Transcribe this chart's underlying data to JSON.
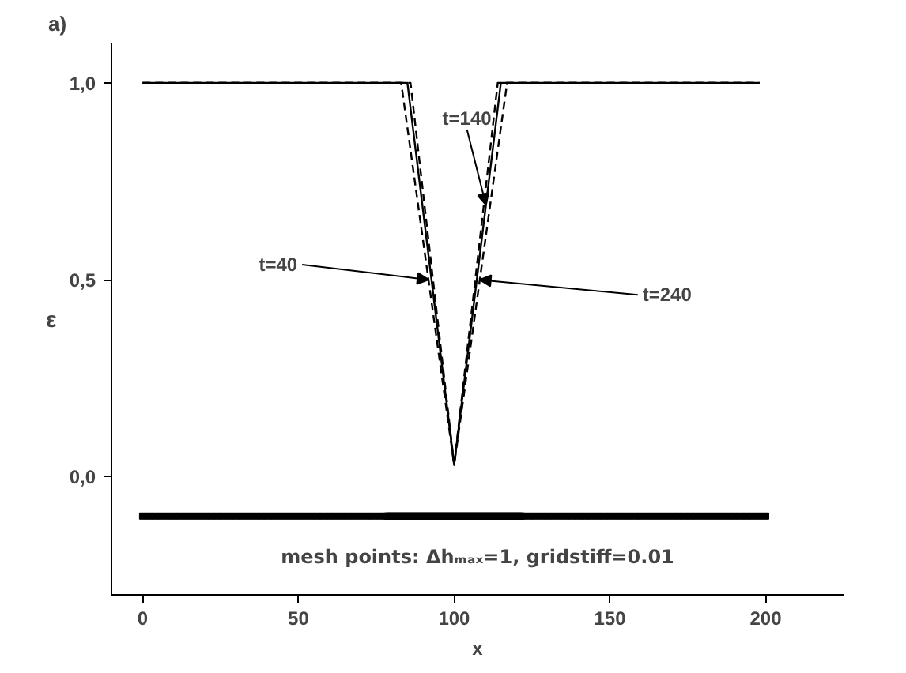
{
  "chart_data": {
    "type": "line",
    "title": "a)",
    "xlabel": "x",
    "ylabel": "ε",
    "xlim": [
      -10,
      225
    ],
    "ylim": [
      -0.3,
      1.1
    ],
    "xticks": [
      0,
      50,
      100,
      150,
      200
    ],
    "yticks": [
      {
        "value": 0,
        "label": "0,0"
      },
      {
        "value": 0.5,
        "label": "0,5"
      },
      {
        "value": 1,
        "label": "1,0"
      }
    ],
    "grid": false,
    "series": [
      {
        "color": "#000000",
        "line_style": "solid",
        "x": [
          0,
          85,
          100,
          115,
          198
        ],
        "values": [
          1,
          1,
          0.03,
          1,
          1
        ]
      },
      {
        "color": "#000000",
        "line_style": "dashed",
        "x": [
          0,
          83,
          100,
          114,
          198
        ],
        "values": [
          1,
          1,
          0.03,
          1,
          1
        ]
      },
      {
        "color": "#000000",
        "line_style": "dashed",
        "x": [
          0,
          86,
          100,
          117,
          198
        ],
        "values": [
          1,
          1,
          0.03,
          1,
          1
        ]
      },
      {
        "type": "scatter",
        "marker": "square",
        "color": "#000000",
        "x": [
          0,
          2,
          4,
          6,
          8,
          10,
          12,
          14,
          16,
          18,
          20,
          22,
          24,
          26,
          28,
          30,
          32,
          34,
          36,
          38,
          40,
          42,
          44,
          46,
          48,
          50,
          52,
          54,
          56,
          58,
          60,
          62,
          64,
          66,
          68,
          70,
          72,
          74,
          76,
          78,
          78.5,
          79,
          79.5,
          80,
          80.5,
          81,
          81.5,
          82,
          82.5,
          83,
          83.5,
          84,
          84.5,
          85,
          85.5,
          86,
          86.5,
          87,
          87.5,
          88,
          88.5,
          89,
          89.5,
          90,
          90.5,
          91,
          91.5,
          92,
          92.5,
          93,
          93.5,
          94,
          94.5,
          95,
          95.5,
          96,
          96.5,
          97,
          97.5,
          98,
          98.5,
          99,
          99.5,
          100,
          100.5,
          101,
          101.5,
          102,
          102.5,
          103,
          103.5,
          104,
          104.5,
          105,
          105.5,
          106,
          106.5,
          107,
          107.5,
          108,
          108.5,
          109,
          109.5,
          110,
          110.5,
          111,
          111.5,
          112,
          112.5,
          113,
          113.5,
          114,
          114.5,
          115,
          115.5,
          116,
          116.5,
          117,
          117.5,
          118,
          118.5,
          119,
          119.5,
          120,
          120.5,
          121,
          121.5,
          122,
          124,
          126,
          128,
          130,
          132,
          134,
          136,
          138,
          140,
          142,
          144,
          146,
          148,
          150,
          152,
          154,
          156,
          158,
          160,
          162,
          164,
          166,
          168,
          170,
          172,
          174,
          176,
          178,
          180,
          182,
          184,
          186,
          188,
          190,
          192,
          194,
          196,
          198,
          200
        ],
        "values": [
          -0.1,
          -0.1,
          -0.1,
          -0.1,
          -0.1,
          -0.1,
          -0.1,
          -0.1,
          -0.1,
          -0.1,
          -0.1,
          -0.1,
          -0.1,
          -0.1,
          -0.1,
          -0.1,
          -0.1,
          -0.1,
          -0.1,
          -0.1,
          -0.1,
          -0.1,
          -0.1,
          -0.1,
          -0.1,
          -0.1,
          -0.1,
          -0.1,
          -0.1,
          -0.1,
          -0.1,
          -0.1,
          -0.1,
          -0.1,
          -0.1,
          -0.1,
          -0.1,
          -0.1,
          -0.1,
          -0.1,
          -0.1,
          -0.1,
          -0.1,
          -0.1,
          -0.1,
          -0.1,
          -0.1,
          -0.1,
          -0.1,
          -0.1,
          -0.1,
          -0.1,
          -0.1,
          -0.1,
          -0.1,
          -0.1,
          -0.1,
          -0.1,
          -0.1,
          -0.1,
          -0.1,
          -0.1,
          -0.1,
          -0.1,
          -0.1,
          -0.1,
          -0.1,
          -0.1,
          -0.1,
          -0.1,
          -0.1,
          -0.1,
          -0.1,
          -0.1,
          -0.1,
          -0.1,
          -0.1,
          -0.1,
          -0.1,
          -0.1,
          -0.1,
          -0.1,
          -0.1,
          -0.1,
          -0.1,
          -0.1,
          -0.1,
          -0.1,
          -0.1,
          -0.1,
          -0.1,
          -0.1,
          -0.1,
          -0.1,
          -0.1,
          -0.1,
          -0.1,
          -0.1,
          -0.1,
          -0.1,
          -0.1,
          -0.1,
          -0.1,
          -0.1,
          -0.1,
          -0.1,
          -0.1,
          -0.1,
          -0.1,
          -0.1,
          -0.1,
          -0.1,
          -0.1,
          -0.1,
          -0.1,
          -0.1,
          -0.1,
          -0.1,
          -0.1,
          -0.1,
          -0.1,
          -0.1,
          -0.1,
          -0.1,
          -0.1,
          -0.1,
          -0.1,
          -0.1,
          -0.1,
          -0.1,
          -0.1,
          -0.1,
          -0.1,
          -0.1,
          -0.1,
          -0.1,
          -0.1,
          -0.1,
          -0.1,
          -0.1,
          -0.1,
          -0.1,
          -0.1,
          -0.1,
          -0.1,
          -0.1,
          -0.1,
          -0.1,
          -0.1,
          -0.1,
          -0.1,
          -0.1,
          -0.1,
          -0.1,
          -0.1,
          -0.1,
          -0.1,
          -0.1,
          -0.1,
          -0.1,
          -0.1,
          -0.1,
          -0.1,
          -0.1,
          -0.1,
          -0.1,
          -0.1
        ]
      }
    ],
    "annotations": [
      {
        "text": "t=40",
        "x": 91.8,
        "y": 0.5
      },
      {
        "text": "t=140",
        "x": 110.2,
        "y": 0.69
      },
      {
        "text": "t=240",
        "x": 108.2,
        "y": 0.5
      },
      "mesh points: Δhₘₐₓ=1, gridstiff=0.01"
    ]
  }
}
